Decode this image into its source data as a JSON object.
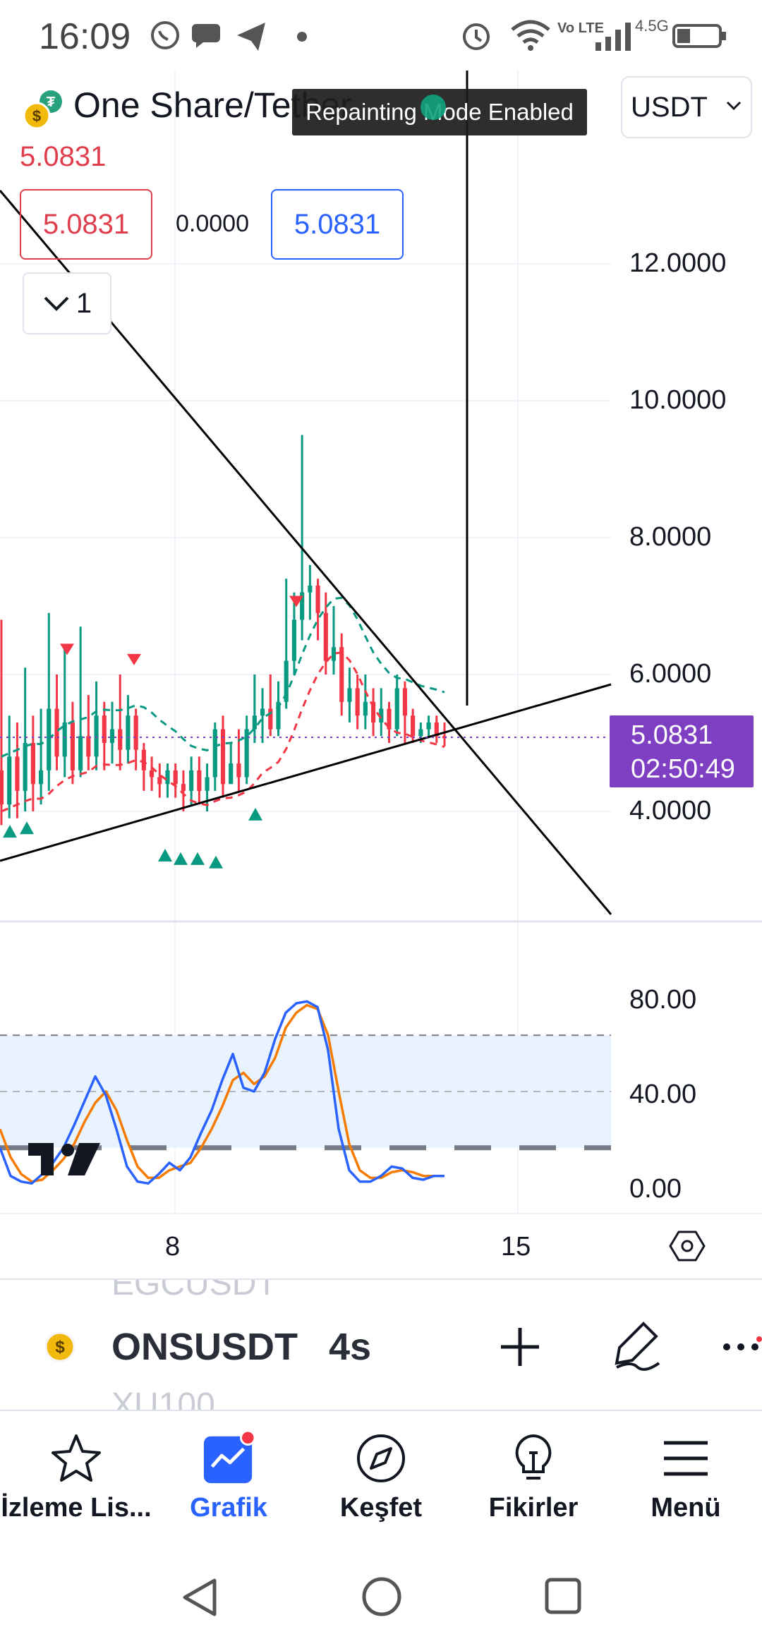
{
  "status_bar": {
    "time": "16:09",
    "network": "4.5G",
    "volte": "Vo LTE"
  },
  "chart_header": {
    "title": "One Share/Tether",
    "currency": "USDT",
    "last_price": "5.0831",
    "sell_price": "5.0831",
    "spread": "0.0000",
    "buy_price": "5.0831",
    "indicator_count": "1",
    "toast": "Repainting Mode Enabled"
  },
  "price_axis": {
    "labels": [
      "12.0000",
      "10.0000",
      "8.0000",
      "6.0000",
      "4.0000"
    ],
    "current_price": "5.0831",
    "countdown": "02:50:49"
  },
  "oscillator_axis": {
    "labels": [
      "80.00",
      "40.00",
      "0.00"
    ]
  },
  "time_axis": {
    "labels": [
      "8",
      "15"
    ]
  },
  "colors": {
    "up_candle": "#089981",
    "down_candle": "#f23645",
    "price_tag": "#7e3fc3",
    "stoch_k": "#2962ff",
    "stoch_d": "#f57c00",
    "accent": "#2962ff"
  },
  "symbol_bar": {
    "ghost_above": "EGCUSDT",
    "symbol": "ONSUSDT",
    "interval": "4s",
    "ghost_below": "XU100"
  },
  "bottom_nav": {
    "items": [
      {
        "label": "İzleme Lis...",
        "icon": "star-icon"
      },
      {
        "label": "Grafik",
        "icon": "chart-icon",
        "active": true
      },
      {
        "label": "Keşfet",
        "icon": "compass-icon"
      },
      {
        "label": "Fikirler",
        "icon": "lightbulb-icon"
      },
      {
        "label": "Menü",
        "icon": "hamburger-icon"
      }
    ]
  },
  "chart_data": {
    "type": "candlestick",
    "title": "One Share/Tether",
    "price_range": [
      2.0,
      13.5
    ],
    "price_ticks": [
      4,
      6,
      8,
      10,
      12
    ],
    "current_price": 5.0831,
    "x_ticks": [
      "8",
      "15"
    ],
    "candles": [
      [
        4.6,
        4.1,
        6.8,
        3.8
      ],
      [
        4.1,
        4.8,
        5.4,
        3.9
      ],
      [
        4.8,
        4.3,
        5.3,
        3.9
      ],
      [
        4.3,
        5.0,
        6.1,
        4.0
      ],
      [
        5.0,
        4.4,
        5.4,
        4.0
      ],
      [
        4.4,
        4.6,
        5.5,
        4.1
      ],
      [
        4.6,
        5.5,
        6.9,
        4.3
      ],
      [
        5.5,
        4.8,
        6.0,
        4.6
      ],
      [
        4.8,
        5.3,
        6.4,
        4.5
      ],
      [
        5.3,
        4.6,
        5.6,
        4.4
      ],
      [
        4.6,
        5.1,
        6.7,
        4.5
      ],
      [
        5.1,
        4.8,
        5.7,
        4.6
      ],
      [
        4.8,
        5.4,
        5.9,
        4.6
      ],
      [
        5.4,
        5.0,
        5.6,
        4.6
      ],
      [
        5.0,
        5.2,
        5.6,
        4.7
      ],
      [
        5.2,
        4.9,
        6.0,
        4.6
      ],
      [
        4.9,
        5.4,
        5.7,
        4.7
      ],
      [
        5.4,
        4.9,
        5.5,
        4.6
      ],
      [
        4.9,
        4.6,
        5.0,
        4.3
      ],
      [
        4.6,
        4.5,
        4.8,
        4.3
      ],
      [
        4.5,
        4.4,
        4.7,
        4.2
      ],
      [
        4.4,
        4.6,
        4.7,
        4.2
      ],
      [
        4.6,
        4.4,
        4.7,
        4.2
      ],
      [
        4.4,
        4.3,
        4.6,
        4.0
      ],
      [
        4.3,
        4.6,
        4.8,
        4.1
      ],
      [
        4.6,
        4.3,
        4.8,
        4.1
      ],
      [
        4.3,
        4.5,
        4.7,
        4.0
      ],
      [
        4.5,
        5.2,
        5.3,
        4.3
      ],
      [
        5.2,
        4.4,
        5.4,
        4.2
      ],
      [
        4.4,
        4.7,
        5.0,
        4.4
      ],
      [
        4.7,
        4.5,
        5.2,
        4.3
      ],
      [
        4.5,
        5.2,
        5.4,
        4.4
      ],
      [
        5.2,
        5.4,
        6.0,
        5.0
      ],
      [
        5.4,
        5.5,
        5.8,
        5.0
      ],
      [
        5.5,
        5.2,
        6.0,
        5.1
      ],
      [
        5.2,
        5.6,
        5.9,
        5.1
      ],
      [
        5.6,
        6.2,
        7.4,
        5.5
      ],
      [
        6.2,
        6.8,
        7.2,
        6.0
      ],
      [
        6.8,
        7.2,
        9.5,
        6.5
      ],
      [
        7.2,
        7.3,
        7.6,
        6.8
      ],
      [
        7.3,
        6.9,
        7.4,
        6.5
      ],
      [
        6.9,
        6.2,
        7.2,
        6.0
      ],
      [
        6.2,
        6.4,
        7.0,
        6.0
      ],
      [
        6.4,
        5.6,
        6.6,
        5.4
      ],
      [
        5.6,
        5.8,
        6.1,
        5.3
      ],
      [
        5.8,
        5.4,
        6.0,
        5.2
      ],
      [
        5.4,
        5.6,
        6.0,
        5.2
      ],
      [
        5.6,
        5.3,
        5.8,
        5.1
      ],
      [
        5.3,
        5.5,
        5.8,
        5.1
      ],
      [
        5.5,
        5.2,
        5.6,
        5.0
      ],
      [
        5.2,
        5.8,
        6.0,
        5.1
      ],
      [
        5.8,
        5.4,
        5.9,
        5.0
      ],
      [
        5.4,
        5.1,
        5.5,
        5.0
      ],
      [
        5.1,
        5.2,
        5.3,
        5.0
      ],
      [
        5.2,
        5.3,
        5.4,
        5.1
      ],
      [
        5.3,
        5.1,
        5.4,
        5.0
      ],
      [
        5.1,
        5.08,
        5.3,
        4.95
      ]
    ],
    "stochastic": {
      "levels": [
        80,
        40,
        0
      ],
      "k": [
        20,
        5,
        2,
        1,
        6,
        12,
        20,
        32,
        45,
        58,
        48,
        30,
        10,
        2,
        1,
        6,
        12,
        8,
        15,
        28,
        40,
        56,
        70,
        52,
        50,
        60,
        78,
        92,
        97,
        98,
        95,
        72,
        30,
        8,
        2,
        2,
        5,
        10,
        9,
        4,
        3,
        5,
        5
      ],
      "d": [
        30,
        15,
        6,
        2,
        3,
        8,
        14,
        22,
        34,
        44,
        50,
        40,
        24,
        10,
        4,
        4,
        8,
        10,
        12,
        20,
        30,
        42,
        56,
        60,
        54,
        58,
        68,
        84,
        92,
        96,
        94,
        80,
        50,
        22,
        8,
        4,
        4,
        7,
        8,
        7,
        5,
        5,
        5
      ]
    }
  }
}
